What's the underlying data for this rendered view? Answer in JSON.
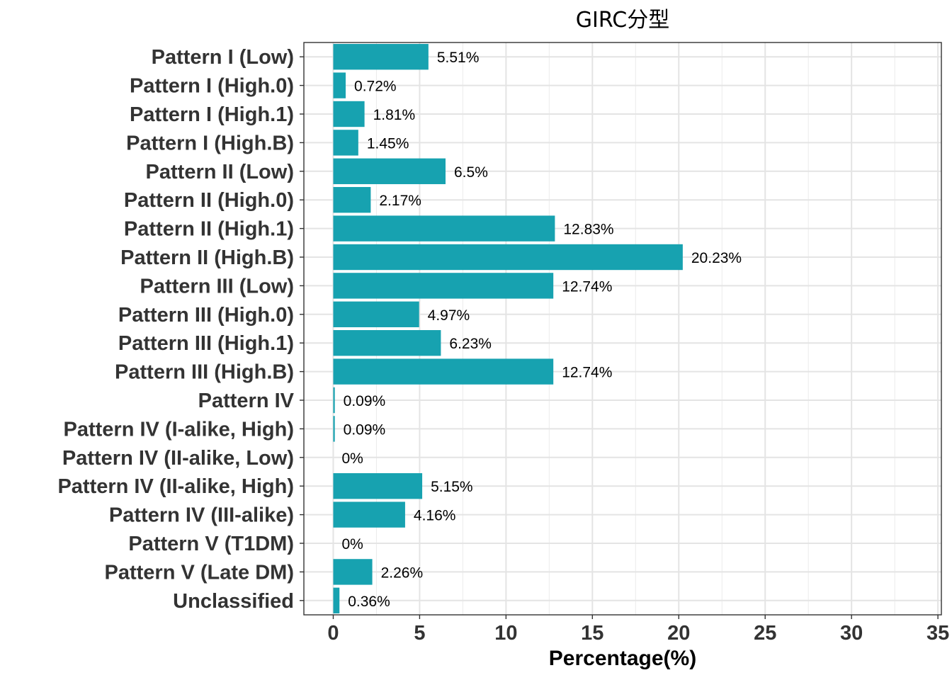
{
  "chart_data": {
    "type": "bar",
    "orientation": "horizontal",
    "title": "GIRC分型",
    "xlabel": "Percentage(%)",
    "ylabel": "",
    "xlim": [
      -1.7,
      35.2
    ],
    "x_ticks": [
      0,
      5,
      10,
      15,
      20,
      25,
      30,
      35
    ],
    "grid": true,
    "bar_color": "#17A2B0",
    "categories": [
      "Pattern I (Low)",
      "Pattern I (High.0)",
      "Pattern I (High.1)",
      "Pattern I (High.B)",
      "Pattern II (Low)",
      "Pattern II (High.0)",
      "Pattern II (High.1)",
      "Pattern II (High.B)",
      "Pattern III (Low)",
      "Pattern III (High.0)",
      "Pattern III (High.1)",
      "Pattern III (High.B)",
      "Pattern IV",
      "Pattern IV (I-alike, High)",
      "Pattern IV (II-alike, Low)",
      "Pattern IV (II-alike, High)",
      "Pattern IV (III-alike)",
      "Pattern V (T1DM)",
      "Pattern V (Late DM)",
      "Unclassified"
    ],
    "values": [
      5.51,
      0.72,
      1.81,
      1.45,
      6.5,
      2.17,
      12.83,
      20.23,
      12.74,
      4.97,
      6.23,
      12.74,
      0.09,
      0.09,
      0,
      5.15,
      4.16,
      0,
      2.26,
      0.36
    ],
    "data_labels": [
      "5.51%",
      "0.72%",
      "1.81%",
      "1.45%",
      "6.5%",
      "2.17%",
      "12.83%",
      "20.23%",
      "12.74%",
      "4.97%",
      "6.23%",
      "12.74%",
      "0.09%",
      "0.09%",
      "0%",
      "5.15%",
      "4.16%",
      "0%",
      "2.26%",
      "0.36%"
    ]
  }
}
